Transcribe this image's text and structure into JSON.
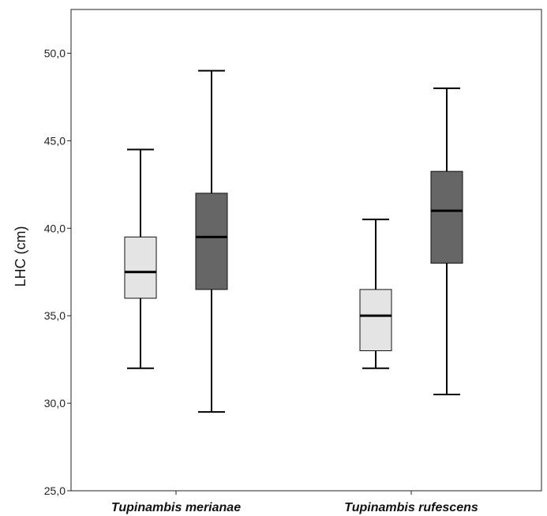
{
  "chart_data": {
    "type": "box",
    "ylabel": "LHC (cm)",
    "xlabel": "",
    "ylim": [
      25,
      52.5
    ],
    "yticks": [
      25,
      30,
      35,
      40,
      45,
      50
    ],
    "ytick_labels": [
      "25,0",
      "30,0",
      "35,0",
      "40,0",
      "45,0",
      "50,0"
    ],
    "categories": [
      "Tupinambis merianae",
      "Tupinambis rufescens"
    ],
    "grid": false,
    "series": [
      {
        "color": "#e4e4e4",
        "boxes": [
          {
            "min": 32.0,
            "q1": 36.0,
            "median": 37.5,
            "q3": 39.5,
            "max": 44.5
          },
          {
            "min": 32.0,
            "q1": 33.0,
            "median": 35.0,
            "q3": 36.5,
            "max": 40.5
          }
        ]
      },
      {
        "color": "#666666",
        "boxes": [
          {
            "min": 29.5,
            "q1": 36.5,
            "median": 39.5,
            "q3": 42.0,
            "max": 49.0
          },
          {
            "min": 30.5,
            "q1": 38.0,
            "median": 41.0,
            "q3": 43.25,
            "max": 48.0
          }
        ]
      }
    ]
  }
}
